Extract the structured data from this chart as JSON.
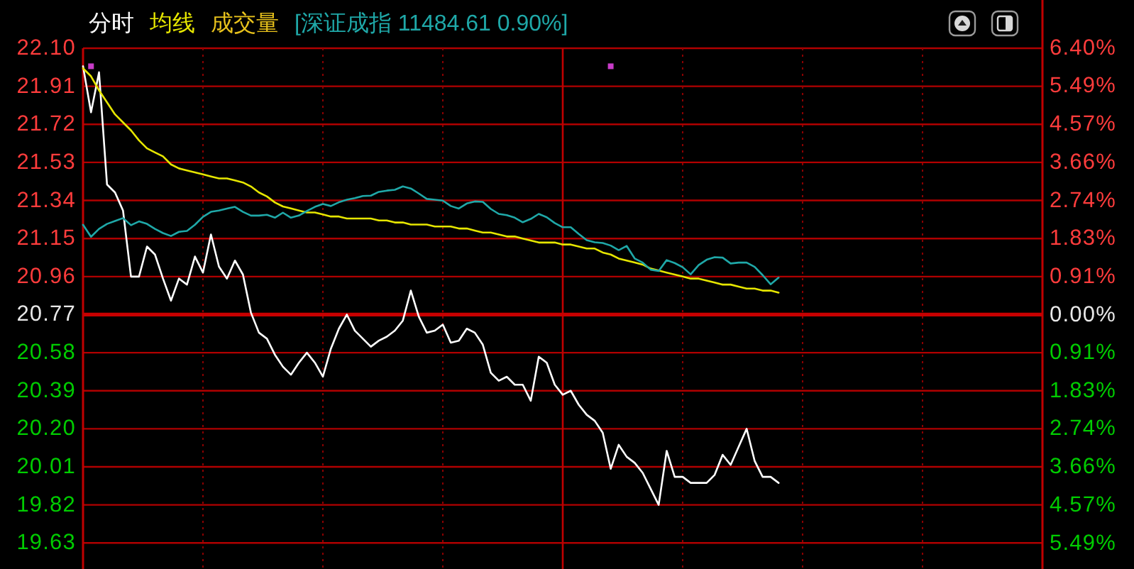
{
  "chart_data": {
    "type": "line",
    "categories": [
      null,
      null,
      null,
      null,
      null,
      null,
      null,
      null,
      null,
      null,
      null,
      null,
      null,
      null,
      null,
      null,
      null,
      null,
      null,
      null,
      null,
      null,
      null,
      null,
      null,
      null,
      null,
      null,
      null,
      null,
      null,
      null,
      null,
      null,
      null,
      null,
      null,
      null,
      null,
      null,
      null,
      null,
      null,
      null,
      null,
      null,
      null,
      null,
      null,
      null,
      null,
      null,
      null,
      null,
      null,
      null,
      null,
      null,
      null,
      null,
      null,
      null,
      null,
      null,
      null,
      null,
      null,
      null,
      null,
      null,
      null,
      null,
      null,
      null,
      null,
      null,
      null,
      null,
      null,
      null,
      null,
      null,
      null,
      null,
      null,
      null,
      null,
      null,
      null,
      null,
      null,
      null,
      null,
      null,
      null,
      null,
      null,
      null,
      null,
      null,
      null,
      null,
      null,
      null,
      null,
      null,
      null,
      null,
      null,
      null,
      null,
      null,
      null,
      null,
      null,
      null,
      null,
      null,
      null,
      null,
      null
    ],
    "series": [
      {
        "name": "分时",
        "color": "#ffffff",
        "values": [
          22.01,
          21.78,
          21.98,
          21.42,
          21.38,
          21.29,
          20.96,
          20.96,
          21.11,
          21.07,
          20.95,
          20.84,
          20.95,
          20.92,
          21.06,
          20.98,
          21.17,
          21.01,
          20.95,
          21.04,
          20.97,
          20.78,
          20.68,
          20.65,
          20.57,
          20.51,
          20.47,
          20.53,
          20.58,
          20.53,
          20.46,
          20.6,
          20.7,
          20.77,
          20.69,
          20.65,
          20.61,
          20.64,
          20.66,
          20.69,
          20.74,
          20.89,
          20.76,
          20.68,
          20.69,
          20.72,
          20.63,
          20.64,
          20.7,
          20.68,
          20.62,
          20.48,
          20.44,
          20.46,
          20.42,
          20.42,
          20.34,
          20.56,
          20.53,
          20.42,
          20.37,
          20.39,
          20.32,
          20.27,
          20.24,
          20.18,
          20.0,
          20.12,
          20.06,
          20.03,
          19.98,
          19.9,
          19.82,
          20.09,
          19.96,
          19.96,
          19.93,
          19.93,
          19.93,
          19.97,
          20.07,
          20.02,
          20.11,
          20.2,
          20.04,
          19.96,
          19.96,
          19.93,
          null,
          null,
          null,
          null,
          null,
          null,
          null,
          null,
          null,
          null,
          null,
          null,
          null,
          null,
          null,
          null,
          null,
          null,
          null,
          null,
          null,
          null,
          null,
          null,
          null,
          null,
          null,
          null,
          null,
          null,
          null,
          null,
          null
        ]
      },
      {
        "name": "均线",
        "color": "#e6e600",
        "values": [
          22.0,
          21.96,
          21.89,
          21.83,
          21.77,
          21.73,
          21.69,
          21.64,
          21.6,
          21.58,
          21.56,
          21.52,
          21.5,
          21.49,
          21.48,
          21.47,
          21.46,
          21.45,
          21.45,
          21.44,
          21.43,
          21.41,
          21.38,
          21.36,
          21.33,
          21.31,
          21.3,
          21.29,
          21.28,
          21.28,
          21.27,
          21.26,
          21.26,
          21.25,
          21.25,
          21.25,
          21.25,
          21.24,
          21.24,
          21.23,
          21.23,
          21.22,
          21.22,
          21.22,
          21.21,
          21.21,
          21.21,
          21.2,
          21.2,
          21.19,
          21.18,
          21.18,
          21.17,
          21.16,
          21.16,
          21.15,
          21.14,
          21.13,
          21.13,
          21.13,
          21.12,
          21.12,
          21.11,
          21.1,
          21.1,
          21.08,
          21.07,
          21.05,
          21.04,
          21.03,
          21.02,
          21.0,
          20.99,
          20.98,
          20.97,
          20.96,
          20.95,
          20.95,
          20.94,
          20.93,
          20.92,
          20.92,
          20.91,
          20.9,
          20.9,
          20.89,
          20.89,
          20.88,
          null,
          null,
          null,
          null,
          null,
          null,
          null,
          null,
          null,
          null,
          null,
          null,
          null,
          null,
          null,
          null,
          null,
          null,
          null,
          null,
          null,
          null,
          null,
          null,
          null,
          null,
          null,
          null,
          null,
          null,
          null,
          null,
          null
        ]
      },
      {
        "name": "[深证成指 11484.61 0.90%]",
        "color": "#1fa8a8",
        "axis": "y2",
        "values": [
          2.16,
          1.87,
          2.06,
          2.18,
          2.25,
          2.32,
          2.15,
          2.24,
          2.18,
          2.06,
          1.96,
          1.89,
          1.99,
          2.01,
          2.16,
          2.35,
          2.47,
          2.5,
          2.55,
          2.59,
          2.47,
          2.38,
          2.38,
          2.4,
          2.33,
          2.45,
          2.33,
          2.38,
          2.49,
          2.59,
          2.66,
          2.61,
          2.7,
          2.76,
          2.8,
          2.85,
          2.86,
          2.95,
          2.98,
          3.0,
          3.08,
          3.03,
          2.91,
          2.78,
          2.76,
          2.74,
          2.61,
          2.55,
          2.67,
          2.72,
          2.71,
          2.54,
          2.42,
          2.39,
          2.33,
          2.22,
          2.3,
          2.42,
          2.34,
          2.2,
          2.1,
          2.1,
          1.94,
          1.79,
          1.74,
          1.72,
          1.66,
          1.55,
          1.65,
          1.35,
          1.25,
          1.08,
          1.05,
          1.31,
          1.24,
          1.14,
          0.97,
          1.19,
          1.32,
          1.38,
          1.37,
          1.23,
          1.25,
          1.25,
          1.15,
          0.95,
          0.73,
          0.89,
          null,
          null,
          null,
          null,
          null,
          null,
          null,
          null,
          null,
          null,
          null,
          null,
          null,
          null,
          null,
          null,
          null,
          null,
          null,
          null,
          null,
          null,
          null,
          null,
          null,
          null,
          null,
          null,
          null,
          null,
          null,
          null,
          null
        ]
      },
      {
        "type": "scatter",
        "color": "#c83cc8",
        "marker": "square",
        "values": [
          null,
          22.01,
          null,
          null,
          null,
          null,
          null,
          null,
          null,
          null,
          null,
          null,
          null,
          null,
          null,
          null,
          null,
          null,
          null,
          null,
          null,
          null,
          null,
          null,
          null,
          null,
          null,
          null,
          null,
          null,
          null,
          null,
          null,
          null,
          null,
          null,
          null,
          null,
          null,
          null,
          null,
          null,
          null,
          null,
          null,
          null,
          null,
          null,
          null,
          null,
          null,
          null,
          null,
          null,
          null,
          null,
          null,
          null,
          null,
          null,
          null,
          null,
          null,
          null,
          null,
          null,
          22.01,
          null,
          null,
          null,
          null,
          null,
          null,
          null,
          null,
          null,
          null,
          null,
          null,
          null,
          null,
          null,
          null,
          null,
          null,
          null,
          null,
          null,
          null,
          null,
          null,
          null,
          null,
          null,
          null,
          null,
          null,
          null,
          null,
          null,
          null,
          null,
          null,
          null,
          null,
          null,
          null,
          null,
          null,
          null,
          null,
          null,
          null,
          null,
          null,
          null,
          null,
          null,
          null,
          null,
          null
        ]
      }
    ],
    "annotations": [
      "成交量"
    ],
    "ylim": [
      19.5,
      22.1
    ],
    "yticks": [
      {
        "value": 22.1,
        "label": "22.10"
      },
      21.91,
      21.72,
      21.53,
      21.34,
      21.15,
      20.96,
      20.77,
      20.58,
      20.39,
      {
        "value": 20.2,
        "label": "20.20"
      },
      20.01,
      19.82,
      19.63
    ],
    "y2lim": [
      -6.11,
      6.4
    ],
    "y2ticks": [
      {
        "value": 6.4,
        "label": "6.40%"
      },
      {
        "value": 5.49,
        "label": "5.49%"
      },
      {
        "value": 4.57,
        "label": "4.57%"
      },
      {
        "value": 3.66,
        "label": "3.66%"
      },
      {
        "value": 2.74,
        "label": "2.74%"
      },
      {
        "value": 1.83,
        "label": "1.83%"
      },
      {
        "value": 0.91,
        "label": "0.91%"
      },
      {
        "value": 0,
        "label": "0.00%"
      },
      {
        "value": -0.91,
        "label": "0.91%"
      },
      {
        "value": -1.83,
        "label": "1.83%"
      },
      {
        "value": -2.74,
        "label": "2.74%"
      },
      {
        "value": -3.66,
        "label": "3.66%"
      },
      {
        "value": -4.57,
        "label": "4.57%"
      },
      {
        "value": -5.49,
        "label": "5.49%"
      }
    ],
    "ref_lines": [
      {
        "axis": "y",
        "value": 20.77,
        "color": "#c80000"
      }
    ],
    "grid": true,
    "legend": "top left"
  }
}
